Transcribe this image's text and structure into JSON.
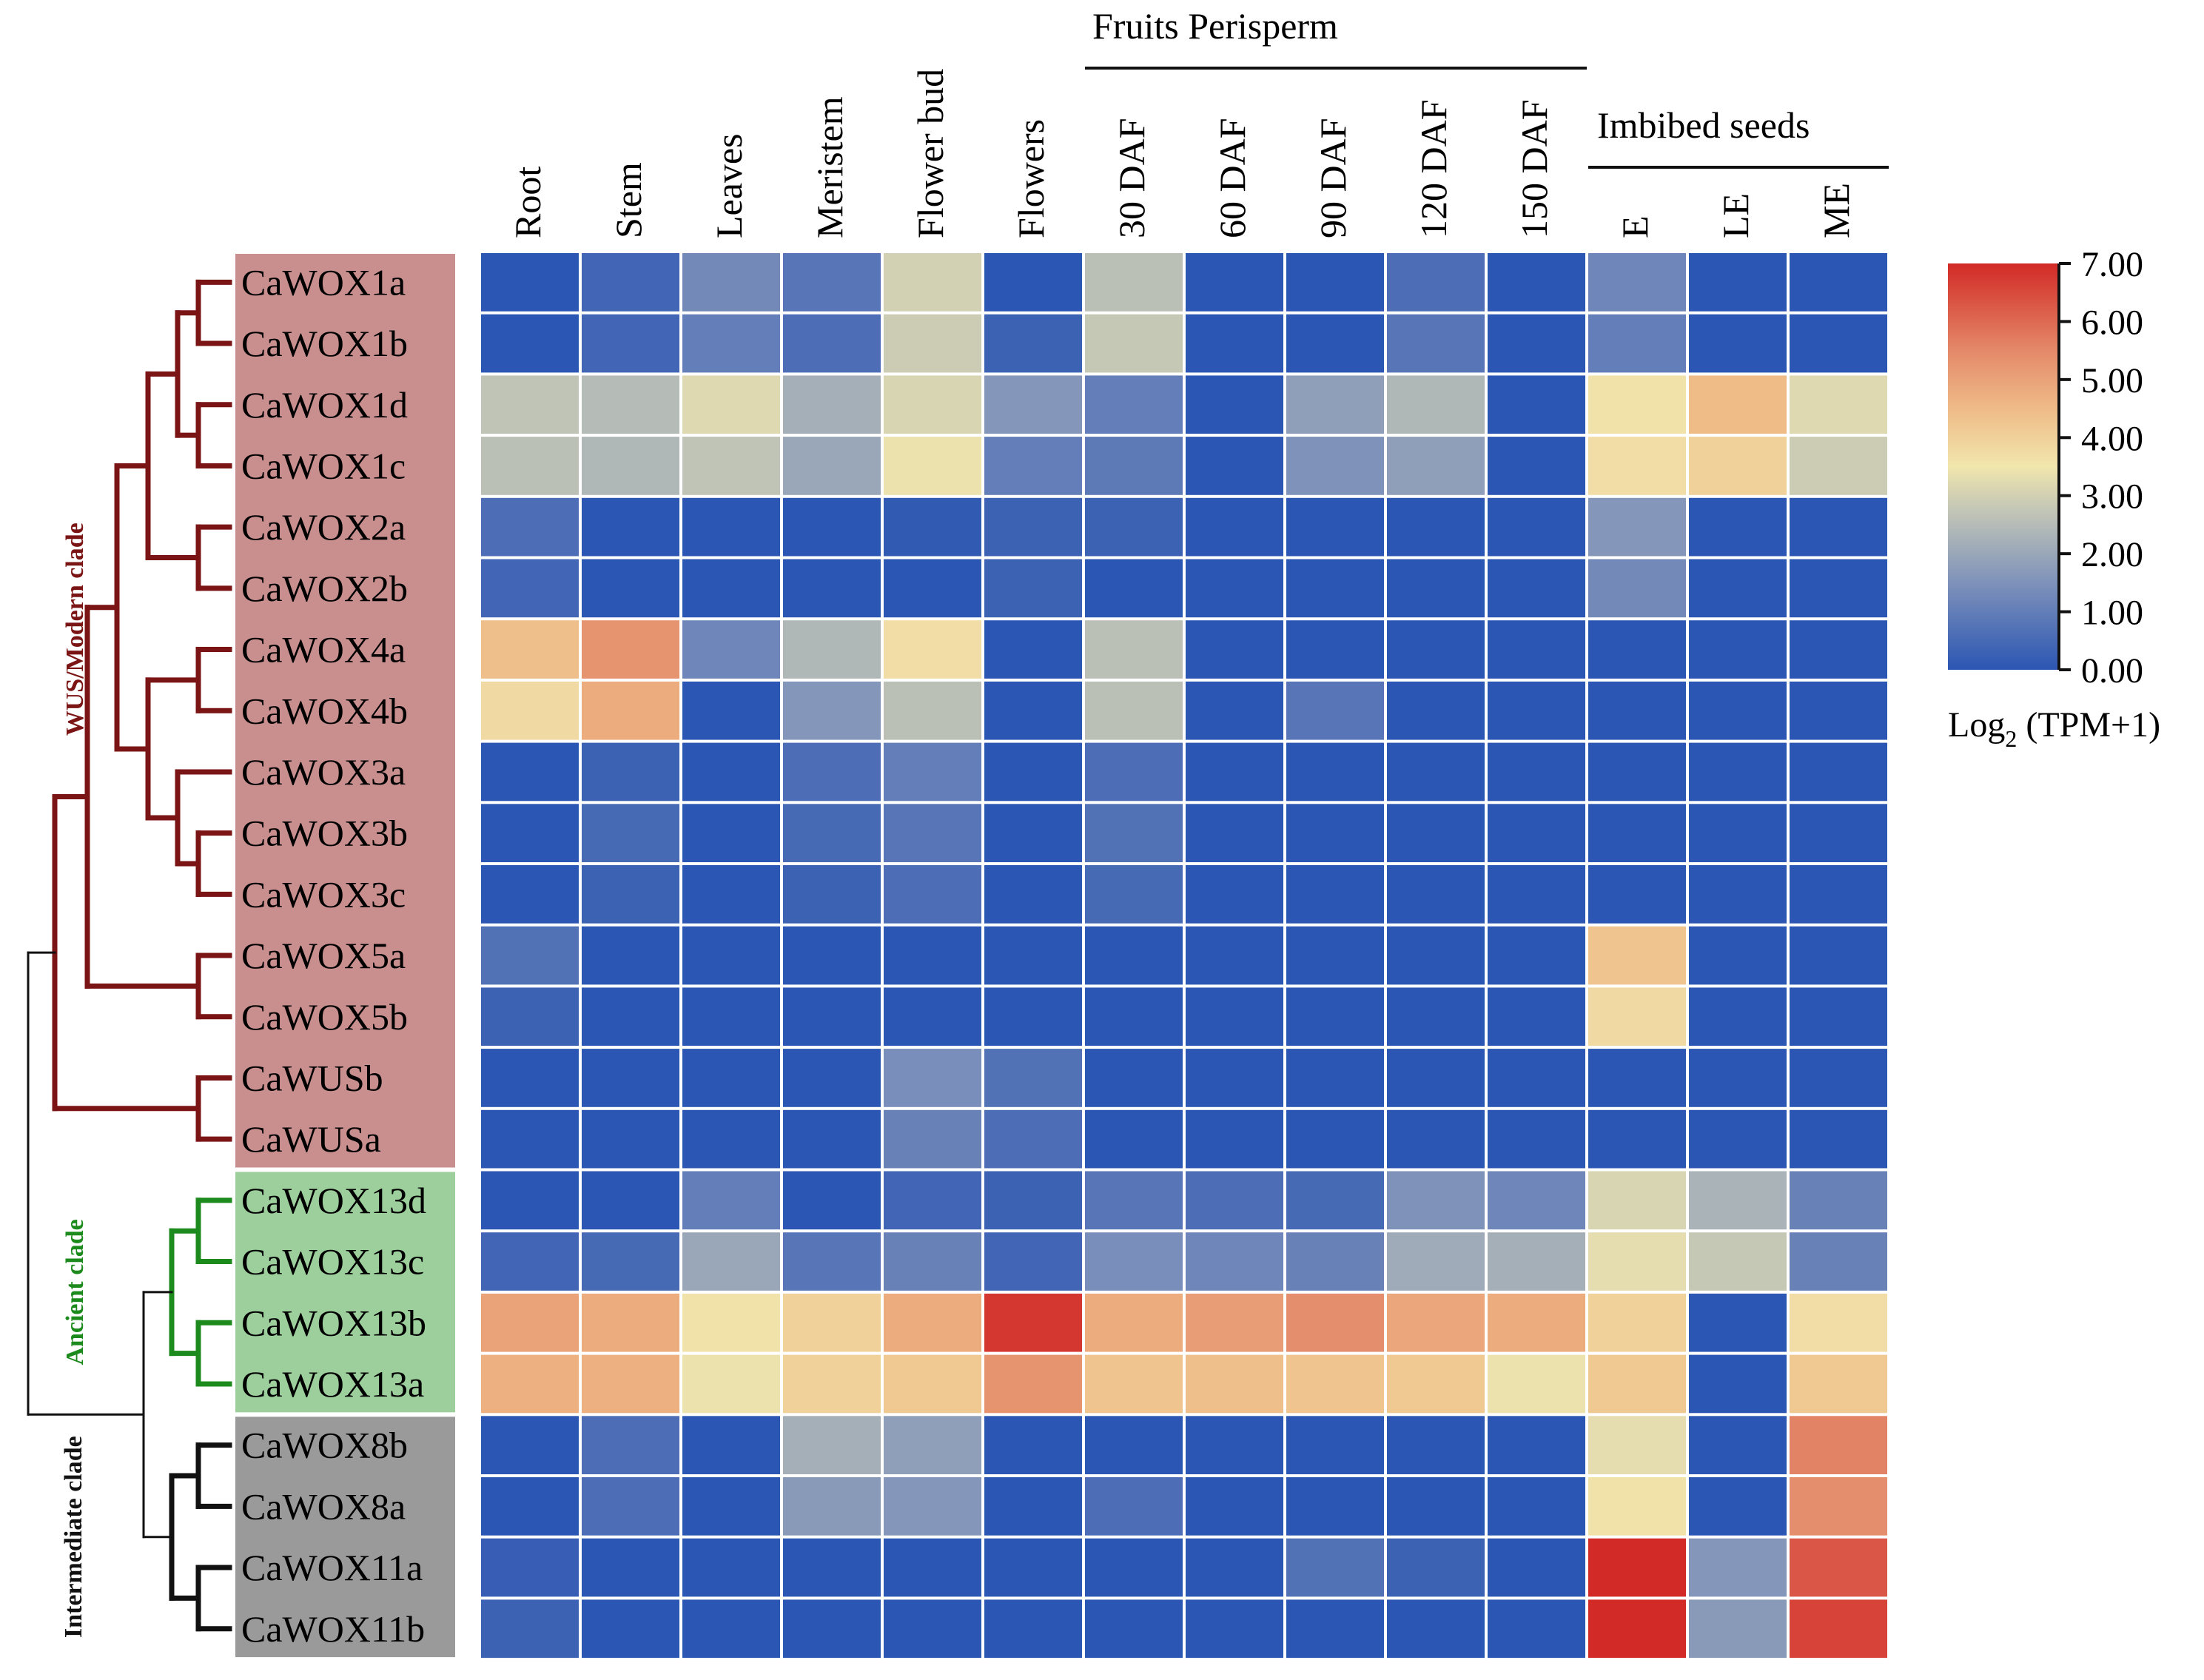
{
  "chart_data": {
    "type": "heatmap",
    "columns": [
      "Root",
      "Stem",
      "Leaves",
      "Meristem",
      "Flower bud",
      "Flowers",
      "30 DAF",
      "60 DAF",
      "90 DAF",
      "120 DAF",
      "150 DAF",
      "E",
      "LE",
      "ME"
    ],
    "column_groups": [
      {
        "label": "Fruits Perisperm",
        "start": 6,
        "end": 10
      },
      {
        "label": "Imbibed seeds",
        "start": 11,
        "end": 13
      }
    ],
    "rows": [
      "CaWOX1a",
      "CaWOX1b",
      "CaWOX1d",
      "CaWOX1c",
      "CaWOX2a",
      "CaWOX2b",
      "CaWOX4a",
      "CaWOX4b",
      "CaWOX3a",
      "CaWOX3b",
      "CaWOX3c",
      "CaWOX5a",
      "CaWOX5b",
      "CaWUSb",
      "CaWUSa",
      "CaWOX13d",
      "CaWOX13c",
      "CaWOX13b",
      "CaWOX13a",
      "CaWOX8b",
      "CaWOX8a",
      "CaWOX11a",
      "CaWOX11b"
    ],
    "row_clade_colors": [
      "#c98f8f",
      "#c98f8f",
      "#c98f8f",
      "#c98f8f",
      "#c98f8f",
      "#c98f8f",
      "#c98f8f",
      "#c98f8f",
      "#c98f8f",
      "#c98f8f",
      "#c98f8f",
      "#c98f8f",
      "#c98f8f",
      "#c98f8f",
      "#c98f8f",
      "#9ccf9c",
      "#9ccf9c",
      "#9ccf9c",
      "#9ccf9c",
      "#9a9a9a",
      "#9a9a9a",
      "#9a9a9a",
      "#9a9a9a"
    ],
    "clades": [
      {
        "label": "WUS/Modern clade",
        "color": "#7b1414",
        "first_row": 0,
        "last_row": 14
      },
      {
        "label": "Ancient clade",
        "color": "#1d8a1d",
        "first_row": 15,
        "last_row": 18
      },
      {
        "label": "Intermediate clade",
        "color": "#111111",
        "first_row": 19,
        "last_row": 22
      }
    ],
    "values": [
      [
        0.0,
        0.4,
        1.3,
        0.8,
        3.0,
        0.0,
        2.6,
        0.0,
        0.0,
        0.6,
        0.0,
        1.2,
        0.0,
        0.0
      ],
      [
        0.0,
        0.4,
        1.0,
        0.6,
        2.9,
        0.3,
        2.8,
        0.0,
        0.0,
        0.8,
        0.0,
        1.0,
        0.0,
        0.0
      ],
      [
        2.7,
        2.5,
        3.2,
        2.2,
        3.1,
        1.6,
        1.0,
        0.0,
        1.8,
        2.4,
        0.0,
        3.6,
        4.5,
        3.2
      ],
      [
        2.6,
        2.4,
        2.7,
        2.0,
        3.4,
        1.0,
        0.9,
        0.0,
        1.5,
        1.8,
        0.0,
        3.7,
        4.0,
        2.9
      ],
      [
        0.6,
        0.0,
        0.0,
        0.0,
        0.1,
        0.3,
        0.3,
        0.0,
        0.0,
        0.0,
        0.0,
        1.6,
        0.0,
        0.0
      ],
      [
        0.4,
        0.0,
        0.0,
        0.0,
        0.0,
        0.3,
        0.0,
        0.0,
        0.0,
        0.0,
        0.0,
        1.3,
        0.0,
        0.0
      ],
      [
        4.4,
        5.3,
        1.2,
        2.4,
        3.7,
        0.0,
        2.6,
        0.0,
        0.0,
        0.0,
        0.0,
        0.0,
        0.0,
        0.0
      ],
      [
        3.8,
        4.8,
        0.0,
        1.6,
        2.6,
        0.0,
        2.6,
        0.0,
        0.8,
        0.0,
        0.0,
        0.0,
        0.0,
        0.0
      ],
      [
        0.0,
        0.3,
        0.0,
        0.6,
        1.0,
        0.0,
        0.6,
        0.0,
        0.0,
        0.0,
        0.0,
        0.0,
        0.0,
        0.0
      ],
      [
        0.0,
        0.5,
        0.0,
        0.5,
        0.8,
        0.0,
        0.7,
        0.0,
        0.0,
        0.0,
        0.0,
        0.0,
        0.0,
        0.0
      ],
      [
        0.0,
        0.3,
        0.0,
        0.3,
        0.6,
        0.0,
        0.5,
        0.0,
        0.0,
        0.0,
        0.0,
        0.0,
        0.0,
        0.0
      ],
      [
        0.7,
        0.0,
        0.0,
        0.0,
        0.0,
        0.0,
        0.0,
        0.0,
        0.0,
        0.0,
        0.0,
        4.3,
        0.0,
        0.0
      ],
      [
        0.3,
        0.0,
        0.0,
        0.0,
        0.0,
        0.0,
        0.0,
        0.0,
        0.0,
        0.0,
        0.0,
        3.8,
        0.0,
        0.0
      ],
      [
        0.0,
        0.0,
        0.0,
        0.0,
        1.4,
        0.7,
        0.0,
        0.0,
        0.0,
        0.0,
        0.0,
        0.0,
        0.0,
        0.0
      ],
      [
        0.0,
        0.0,
        0.0,
        0.0,
        1.1,
        0.6,
        0.0,
        0.0,
        0.0,
        0.0,
        0.0,
        0.0,
        0.0,
        0.0
      ],
      [
        0.0,
        0.0,
        1.0,
        0.0,
        0.4,
        0.3,
        0.8,
        0.6,
        0.5,
        1.5,
        1.2,
        3.1,
        2.3,
        1.1
      ],
      [
        0.4,
        0.5,
        2.0,
        0.8,
        1.1,
        0.4,
        1.4,
        1.2,
        1.1,
        2.1,
        2.2,
        3.3,
        2.8,
        1.1
      ],
      [
        5.0,
        4.8,
        3.6,
        4.0,
        4.8,
        6.8,
        4.8,
        5.1,
        5.4,
        4.9,
        4.8,
        4.0,
        0.0,
        3.7
      ],
      [
        4.7,
        4.7,
        3.4,
        4.0,
        4.2,
        5.3,
        4.3,
        4.4,
        4.3,
        4.2,
        3.4,
        4.2,
        0.0,
        4.2
      ],
      [
        0.0,
        0.6,
        0.0,
        2.2,
        1.8,
        0.0,
        0.0,
        0.0,
        0.0,
        0.0,
        0.0,
        3.3,
        0.0,
        5.6
      ],
      [
        0.0,
        0.6,
        0.0,
        1.7,
        1.6,
        0.0,
        0.6,
        0.0,
        0.0,
        0.0,
        0.0,
        3.6,
        0.0,
        5.4
      ],
      [
        0.2,
        0.0,
        0.0,
        0.0,
        0.0,
        0.0,
        0.0,
        0.0,
        0.7,
        0.3,
        0.0,
        7.0,
        1.6,
        6.3
      ],
      [
        0.3,
        0.0,
        0.0,
        0.0,
        0.0,
        0.0,
        0.0,
        0.0,
        0.0,
        0.0,
        0.0,
        7.0,
        1.7,
        6.6
      ]
    ],
    "colorbar": {
      "min": 0,
      "max": 7,
      "ticks": [
        "7.00",
        "6.00",
        "5.00",
        "4.00",
        "3.00",
        "2.00",
        "1.00",
        "0.00"
      ],
      "label_main": "Log",
      "label_sub": "2",
      "label_rest": " (TPM+1)",
      "stops": [
        {
          "v": 0.0,
          "color": "#2c56b3"
        },
        {
          "v": 1.5,
          "color": "#7e92ba"
        },
        {
          "v": 2.8,
          "color": "#c6c8b6"
        },
        {
          "v": 3.5,
          "color": "#f1e6ad"
        },
        {
          "v": 4.5,
          "color": "#efbb87"
        },
        {
          "v": 5.5,
          "color": "#e4896a"
        },
        {
          "v": 7.0,
          "color": "#d22a26"
        }
      ]
    }
  }
}
